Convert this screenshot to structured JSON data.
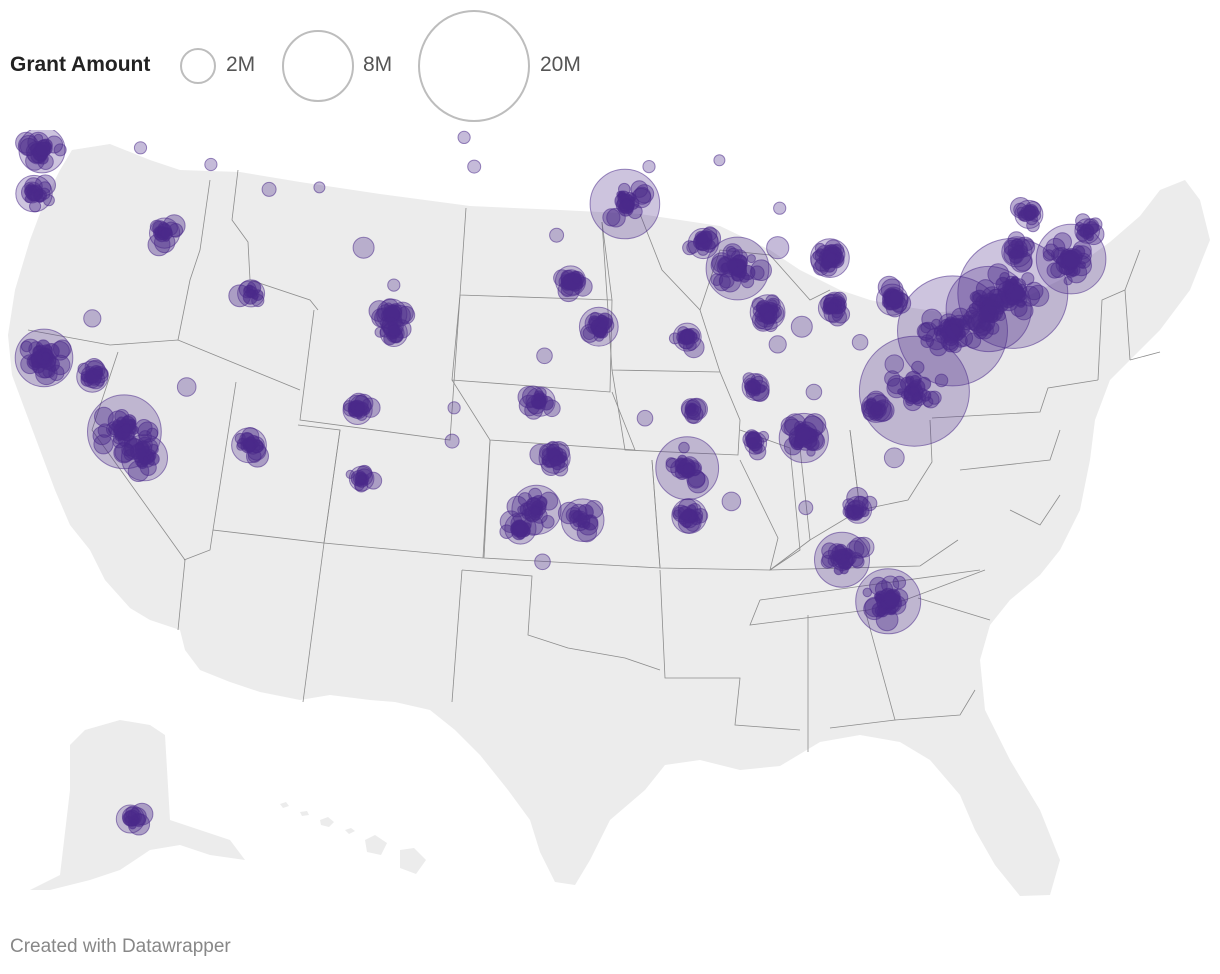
{
  "legend": {
    "title": "Grant Amount",
    "sizes": [
      {
        "label": "2M",
        "amount": 2000000
      },
      {
        "label": "8M",
        "amount": 8000000
      },
      {
        "label": "20M",
        "amount": 20000000
      }
    ]
  },
  "footer": {
    "credit": "Created with Datawrapper"
  },
  "colors": {
    "bubble": "#4b2a8a",
    "land": "#ececec",
    "border": "#8c8c8c",
    "legend_ring": "#bdbdbd"
  },
  "map": {
    "projection": "albers-usa",
    "clusters": [
      {
        "name": "Seattle",
        "lon": -122.3,
        "lat": 47.6,
        "amount": 3500000,
        "count": 14
      },
      {
        "name": "Portland",
        "lon": -122.7,
        "lat": 45.5,
        "amount": 2200000,
        "count": 10
      },
      {
        "name": "Boise",
        "lon": -116.2,
        "lat": 43.6,
        "amount": 1500000,
        "count": 8
      },
      {
        "name": "San Francisco Bay Area",
        "lon": -122.2,
        "lat": 37.6,
        "amount": 5500000,
        "count": 22
      },
      {
        "name": "Fresno",
        "lon": -119.8,
        "lat": 36.7,
        "amount": 1600000,
        "count": 10
      },
      {
        "name": "Los Angeles",
        "lon": -118.2,
        "lat": 34.05,
        "amount": 9000000,
        "count": 24
      },
      {
        "name": "San Diego",
        "lon": -117.2,
        "lat": 32.8,
        "amount": 3500000,
        "count": 14
      },
      {
        "name": "Salt Lake City",
        "lon": -111.9,
        "lat": 40.7,
        "amount": 1200000,
        "count": 6
      },
      {
        "name": "Phoenix",
        "lon": -112.0,
        "lat": 33.4,
        "amount": 2000000,
        "count": 12
      },
      {
        "name": "Denver",
        "lon": -104.9,
        "lat": 39.7,
        "amount": 1500000,
        "count": 14
      },
      {
        "name": "Colorado Springs",
        "lon": -104.8,
        "lat": 38.8,
        "amount": 1200000,
        "count": 8
      },
      {
        "name": "Albuquerque",
        "lon": -106.6,
        "lat": 35.1,
        "amount": 1400000,
        "count": 12
      },
      {
        "name": "El Paso",
        "lon": -106.4,
        "lat": 31.8,
        "amount": 1000000,
        "count": 5
      },
      {
        "name": "Minneapolis",
        "lon": -93.3,
        "lat": 45.0,
        "amount": 8000000,
        "count": 14
      },
      {
        "name": "Chicago",
        "lon": -87.7,
        "lat": 41.9,
        "amount": 6500000,
        "count": 20
      },
      {
        "name": "Madison",
        "lon": -89.4,
        "lat": 43.1,
        "amount": 1500000,
        "count": 10
      },
      {
        "name": "Detroit",
        "lon": -83.1,
        "lat": 42.4,
        "amount": 2500000,
        "count": 20
      },
      {
        "name": "Omaha",
        "lon": -96.0,
        "lat": 41.3,
        "amount": 1500000,
        "count": 10
      },
      {
        "name": "Kansas City",
        "lon": -94.6,
        "lat": 39.1,
        "amount": 2500000,
        "count": 14
      },
      {
        "name": "St. Louis",
        "lon": -90.2,
        "lat": 38.6,
        "amount": 1300000,
        "count": 10
      },
      {
        "name": "Indianapolis",
        "lon": -86.2,
        "lat": 39.8,
        "amount": 2000000,
        "count": 14
      },
      {
        "name": "Columbus",
        "lon": -83.0,
        "lat": 40.0,
        "amount": 1200000,
        "count": 10
      },
      {
        "name": "Pittsburgh",
        "lon": -80.0,
        "lat": 40.4,
        "amount": 1600000,
        "count": 14
      },
      {
        "name": "Oklahoma City",
        "lon": -97.5,
        "lat": 35.5,
        "amount": 1400000,
        "count": 10
      },
      {
        "name": "Dallas",
        "lon": -96.8,
        "lat": 32.8,
        "amount": 1600000,
        "count": 12
      },
      {
        "name": "Austin",
        "lon": -97.7,
        "lat": 30.3,
        "amount": 4000000,
        "count": 14
      },
      {
        "name": "San Antonio",
        "lon": -98.5,
        "lat": 29.4,
        "amount": 1600000,
        "count": 12
      },
      {
        "name": "Houston",
        "lon": -95.4,
        "lat": 29.8,
        "amount": 3000000,
        "count": 8
      },
      {
        "name": "Memphis",
        "lon": -90.0,
        "lat": 35.1,
        "amount": 600000,
        "count": 5
      },
      {
        "name": "Jackson",
        "lon": -90.2,
        "lat": 32.3,
        "amount": 6500000,
        "count": 12
      },
      {
        "name": "New Orleans",
        "lon": -90.1,
        "lat": 30.0,
        "amount": 2000000,
        "count": 12
      },
      {
        "name": "Birmingham",
        "lon": -86.8,
        "lat": 33.5,
        "amount": 800000,
        "count": 6
      },
      {
        "name": "Atlanta",
        "lon": -84.4,
        "lat": 33.75,
        "amount": 4000000,
        "count": 18
      },
      {
        "name": "Nashville",
        "lon": -86.8,
        "lat": 36.2,
        "amount": 1200000,
        "count": 8
      },
      {
        "name": "Charlotte",
        "lon": -80.8,
        "lat": 35.2,
        "amount": 1400000,
        "count": 10
      },
      {
        "name": "Durham",
        "lon": -78.9,
        "lat": 36.0,
        "amount": 20000000,
        "count": 16
      },
      {
        "name": "Washington DC",
        "lon": -77.0,
        "lat": 38.9,
        "amount": 20000000,
        "count": 28
      },
      {
        "name": "Philadelphia",
        "lon": -75.2,
        "lat": 39.95,
        "amount": 12000000,
        "count": 22
      },
      {
        "name": "New York City",
        "lon": -74.0,
        "lat": 40.7,
        "amount": 20000000,
        "count": 30
      },
      {
        "name": "Boston",
        "lon": -71.1,
        "lat": 42.35,
        "amount": 8000000,
        "count": 24
      },
      {
        "name": "Albany",
        "lon": -73.8,
        "lat": 42.7,
        "amount": 1500000,
        "count": 10
      },
      {
        "name": "Burlington",
        "lon": -73.2,
        "lat": 44.5,
        "amount": 1300000,
        "count": 8
      },
      {
        "name": "Portland ME",
        "lon": -70.3,
        "lat": 43.7,
        "amount": 1000000,
        "count": 6
      },
      {
        "name": "Jacksonville",
        "lon": -81.7,
        "lat": 30.3,
        "amount": 1200000,
        "count": 8
      },
      {
        "name": "Tampa",
        "lon": -82.5,
        "lat": 27.9,
        "amount": 5000000,
        "count": 14
      },
      {
        "name": "Miami",
        "lon": -80.2,
        "lat": 25.9,
        "amount": 7000000,
        "count": 18
      },
      {
        "name": "Anchorage",
        "lon": -149.9,
        "lat": 61.2,
        "amount": 1300000,
        "count": 6
      }
    ],
    "singles": [
      {
        "lon": -117.4,
        "lat": 47.7,
        "amount": 300000
      },
      {
        "lon": -113.9,
        "lat": 46.9,
        "amount": 300000
      },
      {
        "lon": -111.0,
        "lat": 45.7,
        "amount": 400000
      },
      {
        "lon": -108.5,
        "lat": 45.8,
        "amount": 250000
      },
      {
        "lon": -106.3,
        "lat": 42.9,
        "amount": 900000
      },
      {
        "lon": -104.8,
        "lat": 41.1,
        "amount": 300000
      },
      {
        "lon": -119.8,
        "lat": 39.5,
        "amount": 600000
      },
      {
        "lon": -115.1,
        "lat": 36.2,
        "amount": 700000
      },
      {
        "lon": -101.3,
        "lat": 48.2,
        "amount": 300000
      },
      {
        "lon": -100.8,
        "lat": 46.8,
        "amount": 350000
      },
      {
        "lon": -96.7,
        "lat": 43.5,
        "amount": 400000
      },
      {
        "lon": -97.3,
        "lat": 37.7,
        "amount": 500000
      },
      {
        "lon": -101.8,
        "lat": 35.2,
        "amount": 300000
      },
      {
        "lon": -101.9,
        "lat": 33.6,
        "amount": 400000
      },
      {
        "lon": -92.3,
        "lat": 34.7,
        "amount": 500000
      },
      {
        "lon": -88.6,
        "lat": 47.1,
        "amount": 250000
      },
      {
        "lon": -92.1,
        "lat": 46.8,
        "amount": 300000
      },
      {
        "lon": -85.6,
        "lat": 44.8,
        "amount": 300000
      },
      {
        "lon": -85.7,
        "lat": 42.9,
        "amount": 1000000
      },
      {
        "lon": -84.5,
        "lat": 39.1,
        "amount": 900000
      },
      {
        "lon": -85.7,
        "lat": 38.25,
        "amount": 600000
      },
      {
        "lon": -81.6,
        "lat": 38.35,
        "amount": 500000
      },
      {
        "lon": -79.9,
        "lat": 37.3,
        "amount": 700000
      },
      {
        "lon": -83.9,
        "lat": 35.96,
        "amount": 500000
      },
      {
        "lon": -79.9,
        "lat": 32.8,
        "amount": 800000
      },
      {
        "lon": -84.3,
        "lat": 30.4,
        "amount": 400000
      },
      {
        "lon": -81.4,
        "lat": 28.5,
        "amount": 800000
      },
      {
        "lon": -88.0,
        "lat": 30.7,
        "amount": 700000
      },
      {
        "lon": -97.4,
        "lat": 27.8,
        "amount": 500000
      },
      {
        "lon": -106.5,
        "lat": 31.8,
        "amount": 300000
      },
      {
        "lon": -80.1,
        "lat": 26.7,
        "amount": 600000
      }
    ]
  }
}
